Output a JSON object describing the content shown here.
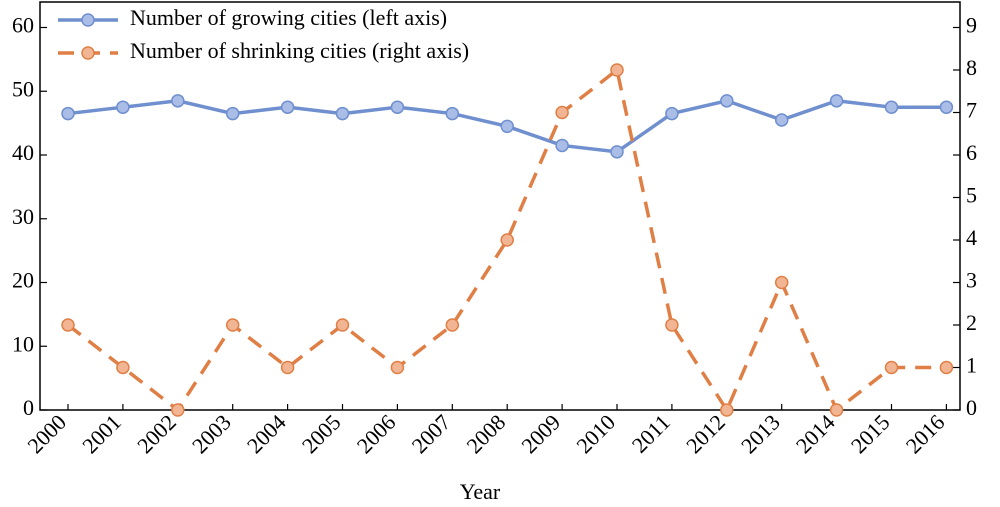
{
  "chart_data": {
    "type": "line",
    "x_label": "Year",
    "categories": [
      "2000",
      "2001",
      "2002",
      "2003",
      "2004",
      "2005",
      "2006",
      "2007",
      "2008",
      "2009",
      "2010",
      "2011",
      "2012",
      "2013",
      "2014",
      "2015",
      "2016"
    ],
    "series": [
      {
        "name": "Number of growing cities (left axis)",
        "color": "#6f8fcf",
        "marker_fill": "#a9bde6",
        "dash": false,
        "values": [
          46.5,
          47.5,
          48.5,
          46.5,
          47.5,
          46.5,
          47.5,
          46.5,
          44.5,
          41.5,
          40.5,
          46.5,
          48.5,
          45.5,
          48.5,
          47.5,
          47.5
        ]
      },
      {
        "name": "Number of shrinking cities (right axis)",
        "color": "#e07f45",
        "marker_fill": "#f2b593",
        "dash": true,
        "axis": "y2",
        "values": [
          2,
          1,
          0,
          2,
          1,
          2,
          1,
          2,
          4,
          7,
          8,
          2,
          0,
          3,
          0,
          1,
          1
        ]
      }
    ],
    "ylim": [
      0,
      64
    ],
    "yticks": [
      0,
      10,
      20,
      30,
      40,
      50,
      60
    ],
    "y2lim": [
      0,
      9.6
    ],
    "y2ticks": [
      0,
      1,
      2,
      3,
      4,
      5,
      6,
      7,
      8,
      9
    ],
    "legend": "upper left",
    "grid": false
  }
}
